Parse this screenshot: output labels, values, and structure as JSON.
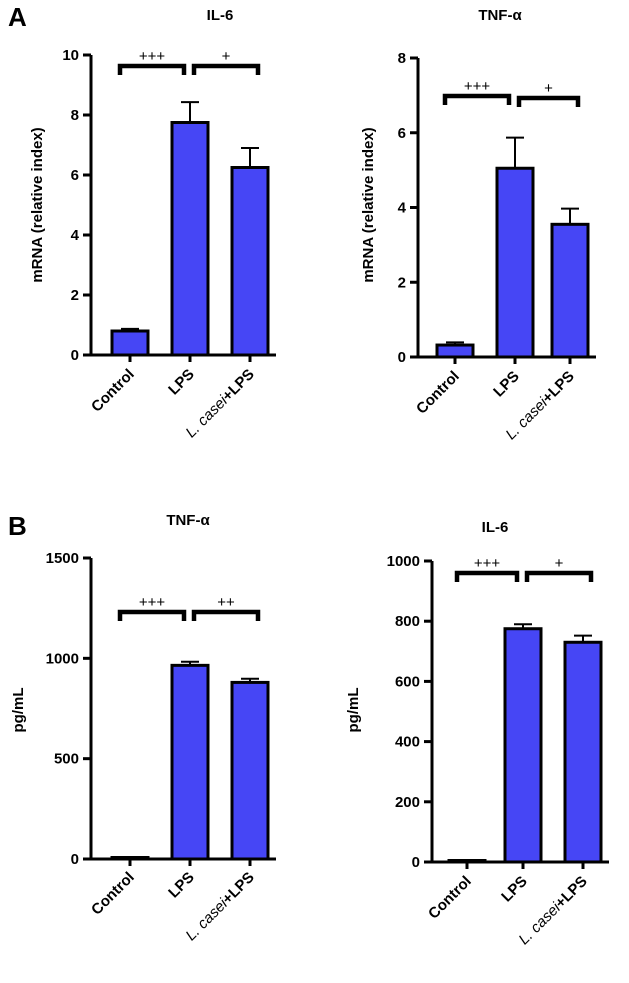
{
  "panels": [
    {
      "letter": "A"
    },
    {
      "letter": "B"
    }
  ],
  "chart_data": [
    {
      "type": "bar",
      "panel": "A",
      "title": "IL-6",
      "ylabel": "mRNA (relative index)",
      "xlabel": "",
      "categories": [
        "Control",
        "LPS",
        "L. casei+LPS"
      ],
      "category_parts": [
        [
          {
            "text": "Control",
            "italic": false
          }
        ],
        [
          {
            "text": "LPS",
            "italic": false
          }
        ],
        [
          {
            "text": "L. casei",
            "italic": true
          },
          {
            "text": "+LPS",
            "italic": false
          }
        ]
      ],
      "values": [
        0.8,
        7.75,
        6.25
      ],
      "errors": [
        0.07,
        0.68,
        0.65
      ],
      "ylim": [
        0,
        10
      ],
      "yticks": [
        0,
        2,
        4,
        6,
        8,
        10
      ],
      "significance": [
        {
          "from": 0,
          "to": 1,
          "label": "+++"
        },
        {
          "from": 1,
          "to": 2,
          "label": "+"
        }
      ],
      "bar_color": "#4646F5"
    },
    {
      "type": "bar",
      "panel": "A",
      "title": "TNF-α",
      "ylabel": "mRNA (relative index)",
      "xlabel": "",
      "categories": [
        "Control",
        "LPS",
        "L. casei+LPS"
      ],
      "category_parts": [
        [
          {
            "text": "Control",
            "italic": false
          }
        ],
        [
          {
            "text": "LPS",
            "italic": false
          }
        ],
        [
          {
            "text": "L. casei",
            "italic": true
          },
          {
            "text": "+LPS",
            "italic": false
          }
        ]
      ],
      "values": [
        0.32,
        5.05,
        3.55
      ],
      "errors": [
        0.07,
        0.82,
        0.42
      ],
      "ylim": [
        0,
        8
      ],
      "yticks": [
        0,
        2,
        4,
        6,
        8
      ],
      "significance": [
        {
          "from": 0,
          "to": 1,
          "label": "+++"
        },
        {
          "from": 1,
          "to": 2,
          "label": "+"
        }
      ],
      "bar_color": "#4646F5"
    },
    {
      "type": "bar",
      "panel": "B",
      "title": "TNF-α",
      "ylabel": "pg/mL",
      "xlabel": "",
      "categories": [
        "Control",
        "LPS",
        "L. casei+LPS"
      ],
      "category_parts": [
        [
          {
            "text": "Control",
            "italic": false
          }
        ],
        [
          {
            "text": "LPS",
            "italic": false
          }
        ],
        [
          {
            "text": "L. casei",
            "italic": true
          },
          {
            "text": "+LPS",
            "italic": false
          }
        ]
      ],
      "values": [
        5,
        965,
        880
      ],
      "errors": [
        3,
        18,
        18
      ],
      "ylim": [
        0,
        1500
      ],
      "yticks": [
        0,
        500,
        1000,
        1500
      ],
      "significance": [
        {
          "from": 0,
          "to": 1,
          "label": "+++"
        },
        {
          "from": 1,
          "to": 2,
          "label": "++"
        }
      ],
      "bar_color": "#4646F5"
    },
    {
      "type": "bar",
      "panel": "B",
      "title": "IL-6",
      "ylabel": "pg/mL",
      "xlabel": "",
      "categories": [
        "Control",
        "LPS",
        "L. casei+LPS"
      ],
      "category_parts": [
        [
          {
            "text": "Control",
            "italic": false
          }
        ],
        [
          {
            "text": "LPS",
            "italic": false
          }
        ],
        [
          {
            "text": "L. casei",
            "italic": true
          },
          {
            "text": "+LPS",
            "italic": false
          }
        ]
      ],
      "values": [
        3,
        775,
        730
      ],
      "errors": [
        2,
        15,
        22
      ],
      "ylim": [
        0,
        1000
      ],
      "yticks": [
        0,
        200,
        400,
        600,
        800,
        1000
      ],
      "significance": [
        {
          "from": 0,
          "to": 1,
          "label": "+++"
        },
        {
          "from": 1,
          "to": 2,
          "label": "+"
        }
      ],
      "bar_color": "#4646F5"
    }
  ]
}
